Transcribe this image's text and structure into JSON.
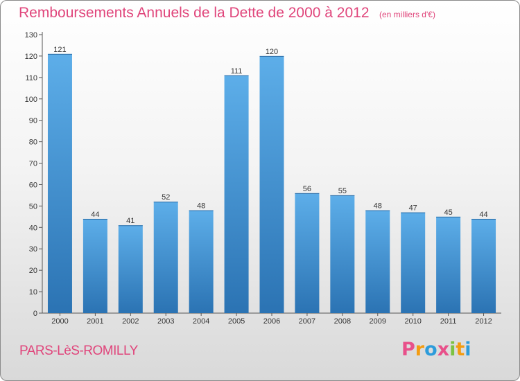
{
  "header": {
    "title": "Remboursements Annuels de la Dette de 2000 à 2012",
    "unit": "(en milliers d'€)"
  },
  "footer": {
    "city": "PARS-LèS-ROMILLY",
    "brand_letters": [
      "P",
      "r",
      "o",
      "x",
      "i",
      "t",
      "i"
    ]
  },
  "colors": {
    "title": "#e0457b",
    "bar_top": "#5daee9",
    "bar_bottom": "#2b73b3",
    "brand_letters": [
      "#e8508a",
      "#f39c12",
      "#2d9cdb",
      "#e8508a",
      "#7cc242",
      "#f39c12",
      "#2d9cdb"
    ]
  },
  "chart_data": {
    "type": "bar",
    "categories": [
      "2000",
      "2001",
      "2002",
      "2003",
      "2004",
      "2005",
      "2006",
      "2007",
      "2008",
      "2009",
      "2010",
      "2011",
      "2012"
    ],
    "values": [
      121,
      44,
      41,
      52,
      48,
      111,
      120,
      56,
      55,
      48,
      47,
      45,
      44
    ],
    "ylim": [
      0,
      130
    ],
    "yticks": [
      0,
      10,
      20,
      30,
      40,
      50,
      60,
      70,
      80,
      90,
      100,
      110,
      120,
      130
    ],
    "grid": false,
    "data_labels": true
  }
}
